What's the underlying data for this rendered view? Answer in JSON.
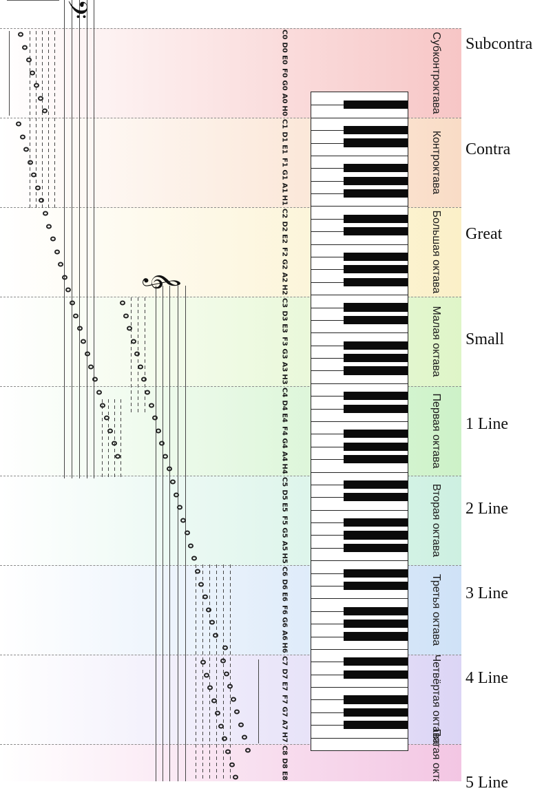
{
  "octaves": [
    {
      "ru": "Субконтроктава",
      "en": "Subcontra",
      "notes": [
        "C0",
        "D0",
        "E0",
        "F0",
        "G0",
        "A0",
        "H0"
      ],
      "color": "#f7c6c6"
    },
    {
      "ru": "Контроктава",
      "en": "Contra",
      "notes": [
        "C1",
        "D1",
        "E1",
        "F1",
        "G1",
        "A1",
        "H1"
      ],
      "color": "#f9dcc6"
    },
    {
      "ru": "Большая октава",
      "en": "Great",
      "notes": [
        "C2",
        "D2",
        "E2",
        "F2",
        "G2",
        "A2",
        "H2"
      ],
      "color": "#fbf0c8"
    },
    {
      "ru": "Малая октава",
      "en": "Small",
      "notes": [
        "C3",
        "D3",
        "E3",
        "F3",
        "G3",
        "A3",
        "H3"
      ],
      "color": "#dff5c8"
    },
    {
      "ru": "Первая октава",
      "en": "1 Line",
      "notes": [
        "C4",
        "D4",
        "E4",
        "F4",
        "G4",
        "A4",
        "H4"
      ],
      "color": "#cdf2c8"
    },
    {
      "ru": "Вторая октава",
      "en": "2 Line",
      "notes": [
        "C5",
        "D5",
        "E5",
        "F5",
        "G5",
        "A5",
        "H5"
      ],
      "color": "#cdf0e1"
    },
    {
      "ru": "Третья октава",
      "en": "3 Line",
      "notes": [
        "C6",
        "D6",
        "E6",
        "F6",
        "G6",
        "A6",
        "H6"
      ],
      "color": "#cfe2f7"
    },
    {
      "ru": "Четвёртая октава",
      "en": "4 Line",
      "notes": [
        "C7",
        "D7",
        "E7",
        "F7",
        "G7",
        "A7",
        "H7"
      ],
      "color": "#dcd5f5"
    },
    {
      "ru": "Пятая октава",
      "en": "5 Line",
      "notes": [
        "C8",
        "D8",
        "E8"
      ],
      "color": "#f3c6e3"
    }
  ],
  "clefs": {
    "bass": "𝄢",
    "treble": "𝄞"
  },
  "icons": {
    "note_head": "whole-note-icon",
    "staff": "staff-lines"
  }
}
